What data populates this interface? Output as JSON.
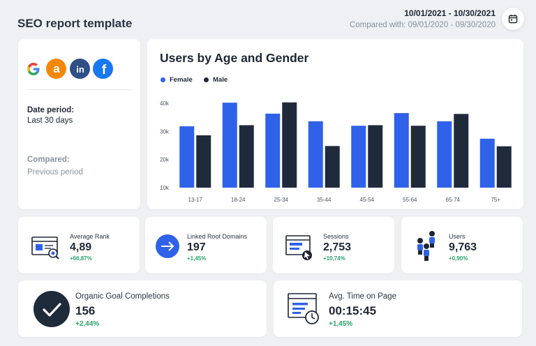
{
  "header": {
    "title": "SEO report template",
    "date_range": "10/01/2021 - 10/30/2021",
    "compared_with": "Compared with: 09/01/2020 - 09/30/2020"
  },
  "info": {
    "brands": [
      "google-icon",
      "ahrefs-icon",
      "linkedin-icon",
      "facebook-icon"
    ],
    "date_period_label": "Date period:",
    "date_period_value": "Last 30 days",
    "compared_label": "Compared:",
    "compared_value": "Previous period"
  },
  "chart_data": {
    "type": "bar",
    "title": "Users by Age and Gender",
    "categories": [
      "13-17",
      "18-24",
      "25-34",
      "35-44",
      "45-54",
      "55-64",
      "65-74",
      "75+"
    ],
    "series": [
      {
        "name": "Female",
        "color": "#2f62e8",
        "values": [
          31800,
          40200,
          36300,
          33600,
          32000,
          36500,
          33600,
          27400
        ]
      },
      {
        "name": "Male",
        "color": "#1f2a3b",
        "values": [
          28600,
          32200,
          40300,
          24800,
          32200,
          32000,
          36200,
          24700
        ]
      }
    ],
    "yticks": [
      "10k",
      "20k",
      "30k",
      "40k"
    ],
    "ylim": [
      10000,
      42000
    ],
    "legend": "top-left"
  },
  "stats": [
    {
      "label": "Average Rank",
      "value": "4,89",
      "change": "+66,87%"
    },
    {
      "label": "Linked Root Domains",
      "value": "197",
      "change": "+1,45%"
    },
    {
      "label": "Sessions",
      "value": "2,753",
      "change": "+10,74%"
    },
    {
      "label": "Users",
      "value": "9,763",
      "change": "+0,90%"
    }
  ],
  "wide_stats": [
    {
      "label": "Organic Goal Completions",
      "value": "156",
      "change": "+2,44%"
    },
    {
      "label": "Avg. Time on Page",
      "value": "00:15:45",
      "change": "+1,45%"
    }
  ],
  "colors": {
    "accent": "#2f62e8",
    "dark": "#1f2a3b",
    "positive": "#27a46a"
  }
}
